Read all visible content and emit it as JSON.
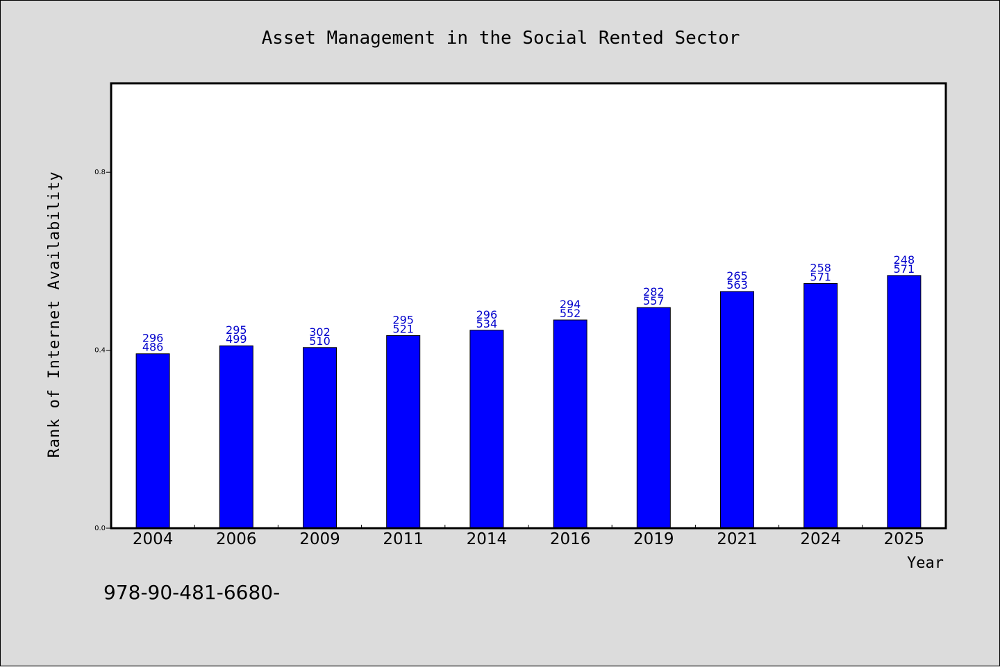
{
  "chart_data": {
    "type": "bar",
    "title": "Asset Management in the Social Rented Sector",
    "xlabel": "Year",
    "ylabel": "Rank of Internet Availability",
    "categories": [
      "2004",
      "2006",
      "2009",
      "2011",
      "2014",
      "2016",
      "2019",
      "2021",
      "2024",
      "2025"
    ],
    "values": [
      0.392,
      0.41,
      0.406,
      0.433,
      0.445,
      0.468,
      0.496,
      0.532,
      0.55,
      0.568
    ],
    "data_labels": [
      [
        "296",
        "486"
      ],
      [
        "295",
        "499"
      ],
      [
        "302",
        "510"
      ],
      [
        "295",
        "521"
      ],
      [
        "296",
        "534"
      ],
      [
        "294",
        "552"
      ],
      [
        "282",
        "557"
      ],
      [
        "265",
        "563"
      ],
      [
        "258",
        "571"
      ],
      [
        "248",
        "571"
      ]
    ],
    "ylim": [
      0,
      1.0
    ],
    "yticks": [
      "0.0",
      "0.4",
      "0.8"
    ],
    "ytick_values": [
      0.0,
      0.4,
      0.8
    ],
    "grid": false,
    "bar_color": "#0000ff",
    "label_color": "#0000cc",
    "plot_background": "#ffffff",
    "figure_background": "#dcdcdc"
  },
  "footer": {
    "text": "978-90-481-6680-"
  }
}
